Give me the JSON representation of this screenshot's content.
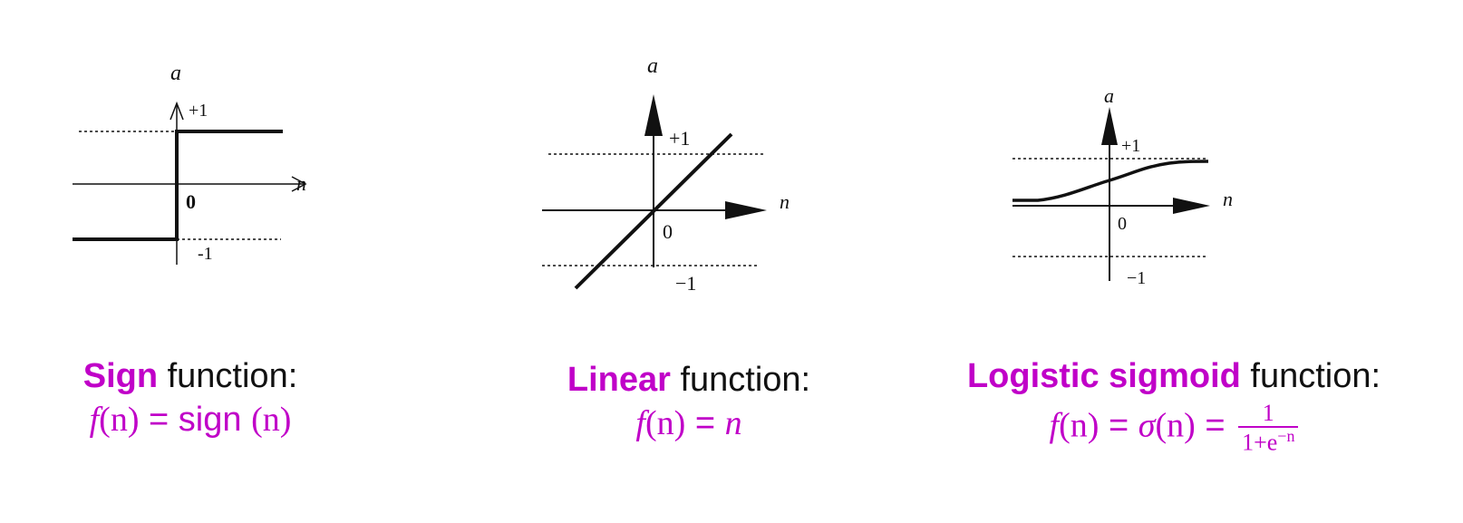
{
  "panels": [
    {
      "id": "sign",
      "axis": {
        "y_label": "a",
        "x_label": "n",
        "plus_one": "+1",
        "minus_one": "-1",
        "zero": "0"
      },
      "caption": {
        "highlight": "Sign",
        "rest": " function:"
      },
      "formula": {
        "lhs_f": "f",
        "lhs_arg": "(n)",
        "equals": " = ",
        "rhs_fn": "sign ",
        "rhs_arg": "(n)"
      }
    },
    {
      "id": "linear",
      "axis": {
        "y_label": "a",
        "x_label": "n",
        "plus_one": "+1",
        "minus_one": "−1",
        "zero": "0"
      },
      "caption": {
        "highlight": "Linear",
        "rest": " function:"
      },
      "formula": {
        "lhs_f": "f",
        "lhs_arg": "(n)",
        "equals": " = ",
        "rhs": "n"
      }
    },
    {
      "id": "sigmoid",
      "axis": {
        "y_label": "a",
        "x_label": "n",
        "plus_one": "+1",
        "minus_one": "−1",
        "zero": "0"
      },
      "caption": {
        "highlight": "Logistic sigmoid",
        "rest": " function:"
      },
      "formula": {
        "lhs_f": "f",
        "lhs_arg": "(n)",
        "equals": " = ",
        "sigma": "σ",
        "sigma_arg": "(n)",
        "equals2": " = ",
        "numerator": "1",
        "denominator": "1+e",
        "exponent": "−n"
      }
    }
  ],
  "colors": {
    "accent": "#c000c8",
    "ink": "#111111"
  }
}
